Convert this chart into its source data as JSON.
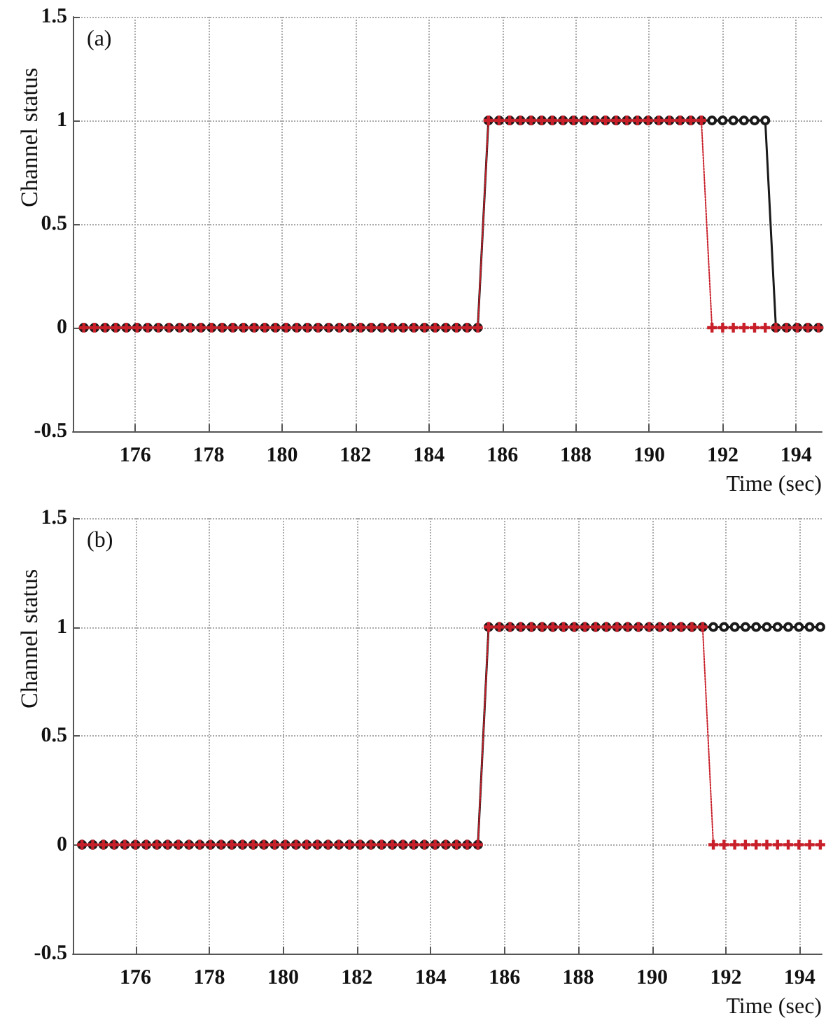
{
  "chart_data": [
    {
      "type": "line",
      "annotations": [
        "(a)"
      ],
      "xlabel": "Time (sec)",
      "ylabel": "Channel status",
      "x": [
        174.6,
        174.89,
        175.18,
        175.47,
        175.76,
        176.05,
        176.34,
        176.63,
        176.92,
        177.21,
        177.5,
        177.79,
        178.08,
        178.37,
        178.66,
        178.95,
        179.24,
        179.53,
        179.82,
        180.11,
        180.4,
        180.69,
        180.98,
        181.27,
        181.56,
        181.85,
        182.14,
        182.43,
        182.72,
        183.01,
        183.3,
        183.59,
        183.88,
        184.17,
        184.46,
        184.75,
        185.04,
        185.33,
        185.62,
        185.91,
        186.2,
        186.49,
        186.78,
        187.07,
        187.36,
        187.65,
        187.94,
        188.23,
        188.52,
        188.81,
        189.1,
        189.39,
        189.68,
        189.97,
        190.26,
        190.55,
        190.84,
        191.13,
        191.42,
        191.71,
        192.0,
        192.29,
        192.58,
        192.87,
        193.16,
        193.45,
        193.74,
        194.03,
        194.32,
        194.61
      ],
      "series": [
        {
          "color": "#1a1a1a",
          "marker": "circle",
          "line_style": "solid",
          "values": [
            0,
            0,
            0,
            0,
            0,
            0,
            0,
            0,
            0,
            0,
            0,
            0,
            0,
            0,
            0,
            0,
            0,
            0,
            0,
            0,
            0,
            0,
            0,
            0,
            0,
            0,
            0,
            0,
            0,
            0,
            0,
            0,
            0,
            0,
            0,
            0,
            0,
            0,
            1,
            1,
            1,
            1,
            1,
            1,
            1,
            1,
            1,
            1,
            1,
            1,
            1,
            1,
            1,
            1,
            1,
            1,
            1,
            1,
            1,
            1,
            1,
            1,
            1,
            1,
            1,
            0,
            0,
            0,
            0,
            0
          ]
        },
        {
          "color": "#c8202a",
          "marker": "cross",
          "line_style": "dotted",
          "values": [
            0,
            0,
            0,
            0,
            0,
            0,
            0,
            0,
            0,
            0,
            0,
            0,
            0,
            0,
            0,
            0,
            0,
            0,
            0,
            0,
            0,
            0,
            0,
            0,
            0,
            0,
            0,
            0,
            0,
            0,
            0,
            0,
            0,
            0,
            0,
            0,
            0,
            0,
            1,
            1,
            1,
            1,
            1,
            1,
            1,
            1,
            1,
            1,
            1,
            1,
            1,
            1,
            1,
            1,
            1,
            1,
            1,
            1,
            1,
            0,
            0,
            0,
            0,
            0,
            0,
            0,
            0,
            0,
            0,
            0
          ]
        }
      ],
      "xlim": [
        174.3,
        194.7
      ],
      "xticks": [
        176,
        178,
        180,
        182,
        184,
        186,
        188,
        190,
        192,
        194
      ],
      "ylim": [
        -0.5,
        1.5
      ],
      "yticks": [
        -0.5,
        0,
        0.5,
        1,
        1.5
      ],
      "grid": true
    },
    {
      "type": "line",
      "annotations": [
        "(b)"
      ],
      "xlabel": "Time (sec)",
      "ylabel": "Channel status",
      "x": [
        174.55,
        174.84,
        175.13,
        175.42,
        175.71,
        176.0,
        176.29,
        176.58,
        176.87,
        177.16,
        177.45,
        177.74,
        178.03,
        178.32,
        178.61,
        178.9,
        179.19,
        179.48,
        179.77,
        180.06,
        180.35,
        180.64,
        180.93,
        181.22,
        181.51,
        181.8,
        182.09,
        182.38,
        182.67,
        182.96,
        183.25,
        183.54,
        183.83,
        184.12,
        184.41,
        184.7,
        184.99,
        185.28,
        185.57,
        185.86,
        186.15,
        186.44,
        186.73,
        187.02,
        187.31,
        187.6,
        187.89,
        188.18,
        188.47,
        188.76,
        189.05,
        189.34,
        189.63,
        189.92,
        190.21,
        190.5,
        190.79,
        191.08,
        191.37,
        191.66,
        191.95,
        192.24,
        192.53,
        192.82,
        193.11,
        193.4,
        193.69,
        193.98,
        194.27,
        194.56
      ],
      "series": [
        {
          "color": "#1a1a1a",
          "marker": "circle",
          "line_style": "solid",
          "values": [
            0,
            0,
            0,
            0,
            0,
            0,
            0,
            0,
            0,
            0,
            0,
            0,
            0,
            0,
            0,
            0,
            0,
            0,
            0,
            0,
            0,
            0,
            0,
            0,
            0,
            0,
            0,
            0,
            0,
            0,
            0,
            0,
            0,
            0,
            0,
            0,
            0,
            0,
            1,
            1,
            1,
            1,
            1,
            1,
            1,
            1,
            1,
            1,
            1,
            1,
            1,
            1,
            1,
            1,
            1,
            1,
            1,
            1,
            1,
            1,
            1,
            1,
            1,
            1,
            1,
            1,
            1,
            1,
            1,
            1
          ]
        },
        {
          "color": "#c8202a",
          "marker": "cross",
          "line_style": "dotted",
          "values": [
            0,
            0,
            0,
            0,
            0,
            0,
            0,
            0,
            0,
            0,
            0,
            0,
            0,
            0,
            0,
            0,
            0,
            0,
            0,
            0,
            0,
            0,
            0,
            0,
            0,
            0,
            0,
            0,
            0,
            0,
            0,
            0,
            0,
            0,
            0,
            0,
            0,
            0,
            1,
            1,
            1,
            1,
            1,
            1,
            1,
            1,
            1,
            1,
            1,
            1,
            1,
            1,
            1,
            1,
            1,
            1,
            1,
            1,
            1,
            0,
            0,
            0,
            0,
            0,
            0,
            0,
            0,
            0,
            0,
            0
          ]
        }
      ],
      "xlim": [
        174.3,
        194.6
      ],
      "xticks": [
        176,
        178,
        180,
        182,
        184,
        186,
        188,
        190,
        192,
        194
      ],
      "ylim": [
        -0.5,
        1.5
      ],
      "yticks": [
        -0.5,
        0,
        0.5,
        1,
        1.5
      ],
      "grid": true
    }
  ]
}
